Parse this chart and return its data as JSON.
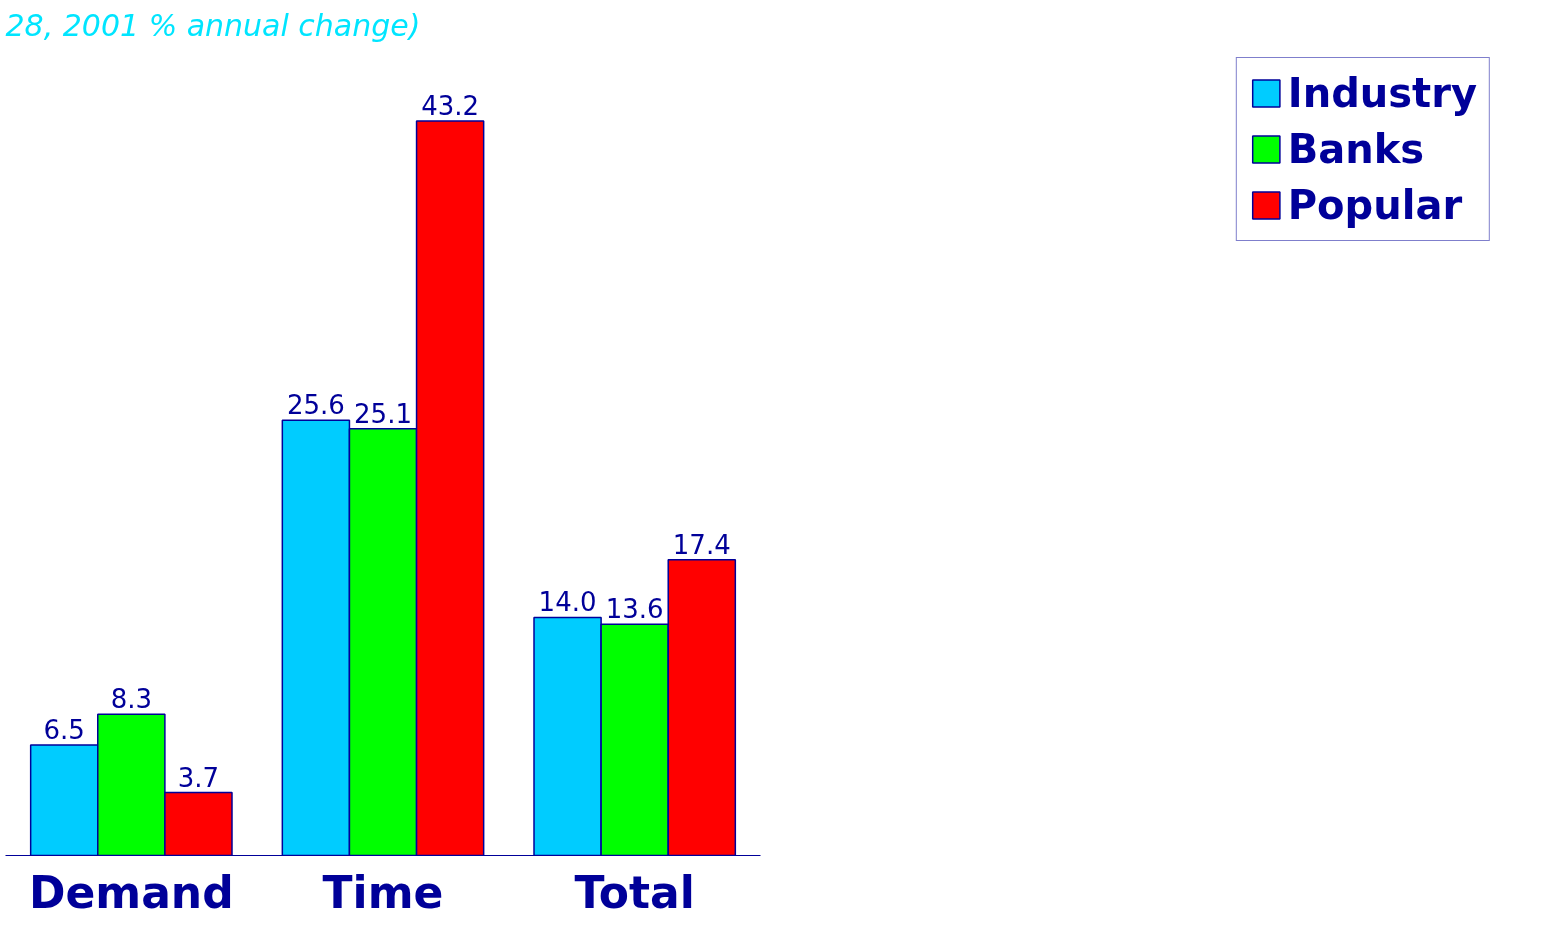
{
  "chart_data": {
    "type": "bar",
    "title": "28, 2001 % annual change)",
    "categories": [
      "Demand",
      "Time",
      "Total"
    ],
    "series": [
      {
        "name": "Industry",
        "color": "#00ccff",
        "values": [
          6.5,
          25.6,
          14.0
        ],
        "value_labels": [
          "6.5",
          "25.6",
          "14.0"
        ]
      },
      {
        "name": "Banks",
        "color": "#00ff00",
        "values": [
          8.3,
          25.1,
          13.6
        ],
        "value_labels": [
          "8.3",
          "25.1",
          "13.6"
        ]
      },
      {
        "name": "Popular",
        "color": "#ff0000",
        "values": [
          3.7,
          43.2,
          17.4
        ],
        "value_labels": [
          "3.7",
          "43.2",
          "17.4"
        ]
      }
    ],
    "legend": "right",
    "grid": false,
    "tick_labels": "x"
  }
}
